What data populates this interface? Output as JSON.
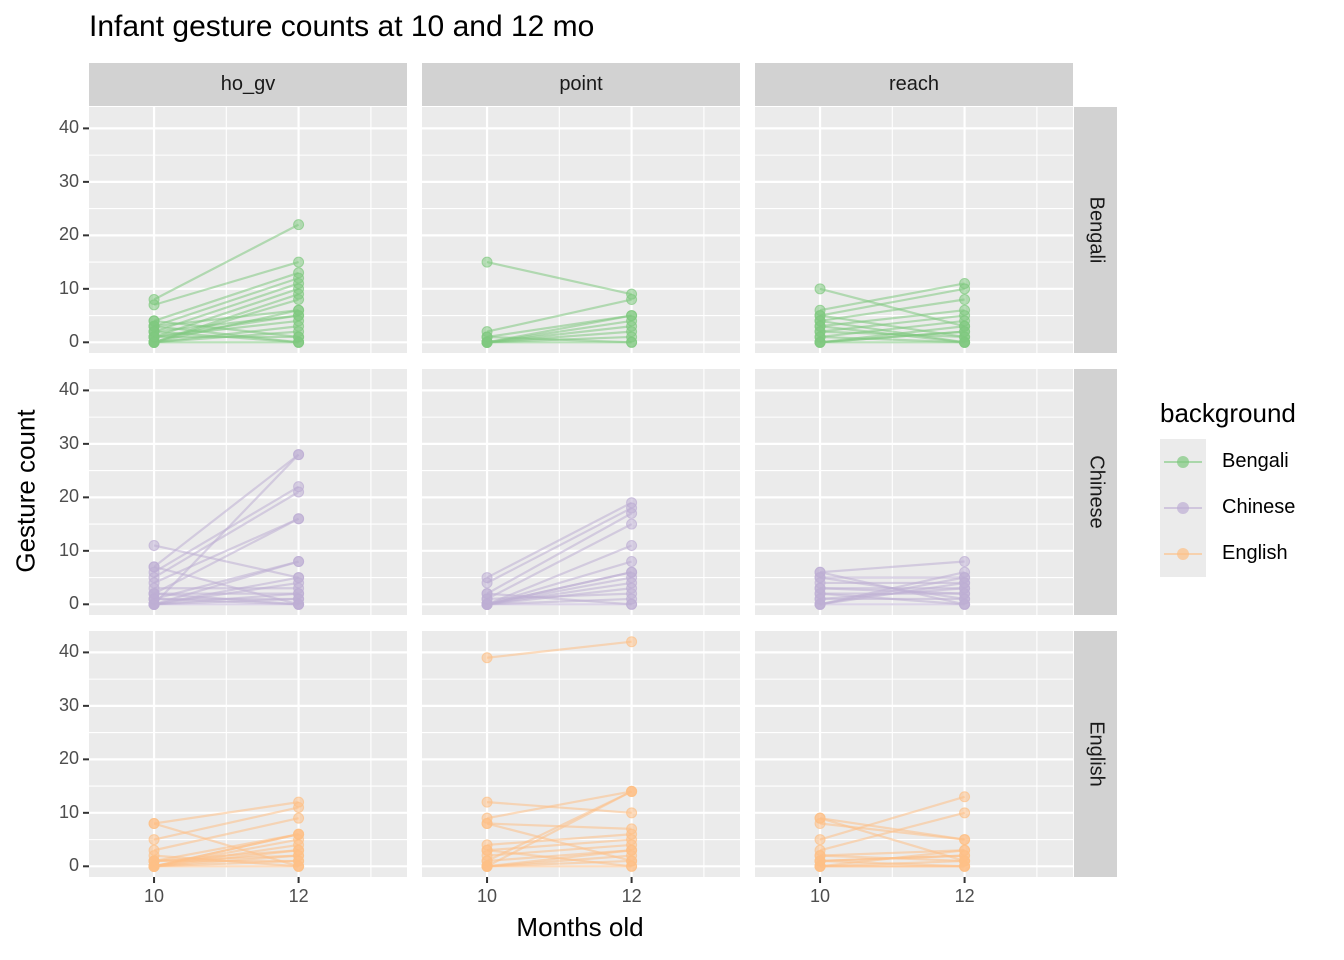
{
  "chart_data": {
    "type": "line",
    "title": "Infant gesture counts at 10 and 12 mo",
    "xlabel": "Months old",
    "ylabel": "Gesture count",
    "x": [
      10,
      12
    ],
    "x_ticks": [
      "10",
      "12"
    ],
    "y_ticks": [
      "0",
      "10",
      "20",
      "30",
      "40"
    ],
    "xlim": [
      9.1,
      13.5
    ],
    "ylim": [
      -2,
      44
    ],
    "legend_title": "background",
    "legend_position": "right",
    "grid": true,
    "colors": {
      "Bengali": "#7fc97f",
      "Chinese": "#beaed4",
      "English": "#fdc086"
    },
    "facet_cols": [
      "ho_gv",
      "point",
      "reach"
    ],
    "facet_rows": [
      "Bengali",
      "Chinese",
      "English"
    ],
    "series": [
      {
        "background": "Bengali",
        "gesture": "ho_gv",
        "lines": [
          [
            8,
            22
          ],
          [
            7,
            15
          ],
          [
            4,
            13
          ],
          [
            3,
            12
          ],
          [
            2,
            11
          ],
          [
            1,
            10
          ],
          [
            0,
            9
          ],
          [
            0,
            8
          ],
          [
            3,
            6
          ],
          [
            2,
            5
          ],
          [
            1,
            4
          ],
          [
            0,
            3
          ],
          [
            0,
            2
          ],
          [
            4,
            1
          ],
          [
            3,
            0
          ],
          [
            2,
            0
          ],
          [
            1,
            1
          ],
          [
            0,
            0
          ],
          [
            0,
            6
          ],
          [
            1,
            5
          ]
        ]
      },
      {
        "background": "Bengali",
        "gesture": "point",
        "lines": [
          [
            15,
            9
          ],
          [
            2,
            8
          ],
          [
            1,
            5
          ],
          [
            0,
            4
          ],
          [
            0,
            3
          ],
          [
            0,
            2
          ],
          [
            0,
            1
          ],
          [
            0,
            0
          ],
          [
            1,
            0
          ],
          [
            0,
            5
          ]
        ]
      },
      {
        "background": "Bengali",
        "gesture": "reach",
        "lines": [
          [
            10,
            3
          ],
          [
            6,
            11
          ],
          [
            5,
            10
          ],
          [
            4,
            8
          ],
          [
            3,
            6
          ],
          [
            2,
            5
          ],
          [
            1,
            4
          ],
          [
            0,
            3
          ],
          [
            0,
            2
          ],
          [
            5,
            1
          ],
          [
            4,
            0
          ],
          [
            3,
            0
          ],
          [
            2,
            1
          ],
          [
            1,
            0
          ],
          [
            0,
            0
          ],
          [
            0,
            2
          ]
        ]
      },
      {
        "background": "Chinese",
        "gesture": "ho_gv",
        "lines": [
          [
            11,
            5
          ],
          [
            7,
            28
          ],
          [
            6,
            22
          ],
          [
            5,
            21
          ],
          [
            4,
            16
          ],
          [
            2,
            16
          ],
          [
            1,
            8
          ],
          [
            0,
            8
          ],
          [
            0,
            5
          ],
          [
            0,
            4
          ],
          [
            3,
            3
          ],
          [
            2,
            2
          ],
          [
            1,
            1
          ],
          [
            0,
            0
          ],
          [
            7,
            0
          ],
          [
            0,
            28
          ],
          [
            2,
            0
          ],
          [
            1,
            0
          ],
          [
            0,
            2
          ],
          [
            0,
            1
          ]
        ]
      },
      {
        "background": "Chinese",
        "gesture": "point",
        "lines": [
          [
            5,
            19
          ],
          [
            4,
            18
          ],
          [
            2,
            17
          ],
          [
            1,
            15
          ],
          [
            0,
            11
          ],
          [
            0,
            8
          ],
          [
            0,
            6
          ],
          [
            0,
            5
          ],
          [
            0,
            4
          ],
          [
            0,
            3
          ],
          [
            1,
            2
          ],
          [
            0,
            1
          ],
          [
            0,
            0
          ],
          [
            2,
            0
          ],
          [
            0,
            6
          ]
        ]
      },
      {
        "background": "Chinese",
        "gesture": "reach",
        "lines": [
          [
            6,
            8
          ],
          [
            5,
            5
          ],
          [
            4,
            4
          ],
          [
            3,
            3
          ],
          [
            2,
            2
          ],
          [
            1,
            1
          ],
          [
            0,
            0
          ],
          [
            6,
            0
          ],
          [
            5,
            1
          ],
          [
            0,
            5
          ],
          [
            0,
            6
          ],
          [
            1,
            3
          ],
          [
            2,
            0
          ],
          [
            3,
            2
          ],
          [
            0,
            4
          ]
        ]
      },
      {
        "background": "English",
        "gesture": "ho_gv",
        "lines": [
          [
            8,
            12
          ],
          [
            5,
            11
          ],
          [
            3,
            9
          ],
          [
            1,
            6
          ],
          [
            0,
            6
          ],
          [
            0,
            5
          ],
          [
            0,
            4
          ],
          [
            1,
            3
          ],
          [
            0,
            2
          ],
          [
            0,
            1
          ],
          [
            0,
            0
          ],
          [
            2,
            0
          ],
          [
            1,
            1
          ],
          [
            0,
            6
          ],
          [
            8,
            0
          ],
          [
            1,
            2
          ],
          [
            0,
            3
          ]
        ]
      },
      {
        "background": "English",
        "gesture": "point",
        "lines": [
          [
            39,
            42
          ],
          [
            12,
            10
          ],
          [
            9,
            14
          ],
          [
            8,
            7
          ],
          [
            4,
            6
          ],
          [
            3,
            5
          ],
          [
            2,
            4
          ],
          [
            1,
            3
          ],
          [
            0,
            2
          ],
          [
            0,
            1
          ],
          [
            0,
            0
          ],
          [
            1,
            14
          ],
          [
            0,
            14
          ],
          [
            8,
            1
          ],
          [
            3,
            0
          ],
          [
            0,
            3
          ]
        ]
      },
      {
        "background": "English",
        "gesture": "reach",
        "lines": [
          [
            9,
            5
          ],
          [
            8,
            5
          ],
          [
            5,
            13
          ],
          [
            3,
            10
          ],
          [
            2,
            3
          ],
          [
            1,
            2
          ],
          [
            0,
            1
          ],
          [
            0,
            0
          ],
          [
            1,
            0
          ],
          [
            2,
            1
          ],
          [
            0,
            3
          ],
          [
            1,
            2
          ],
          [
            9,
            1
          ],
          [
            0,
            0
          ]
        ]
      }
    ]
  }
}
